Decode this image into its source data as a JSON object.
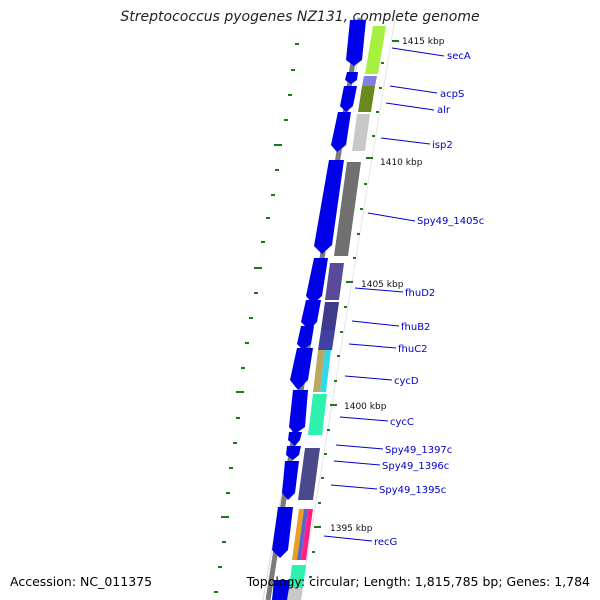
{
  "title": "Streptococcus pyogenes NZ131, complete genome",
  "footer": {
    "accession": "Accession: NC_011375",
    "topology": "Topology: circular; Length: 1,815,785 bp; Genes: 1,784"
  },
  "colors": {
    "cds_forward": "#0000e8",
    "backbone": "#7a7a7a",
    "label_blue": "#0000cc",
    "tick_green": "#1a7a1a"
  },
  "ticks": [
    {
      "label": "1415 kbp"
    },
    {
      "label": "1410 kbp"
    },
    {
      "label": "1405 kbp"
    },
    {
      "label": "1400 kbp"
    },
    {
      "label": "1395 kbp"
    }
  ],
  "genes": [
    {
      "name": "secA",
      "color": "#a8f040"
    },
    {
      "name": "acpS",
      "color": "#8080e0"
    },
    {
      "name": "alr",
      "color": "#6a8a20"
    },
    {
      "name": "isp2",
      "color": "#c8c8c8"
    },
    {
      "name": "Spy49_1405c",
      "color": "#707070"
    },
    {
      "name": "fhuD2",
      "color": "#5a4a9a"
    },
    {
      "name": "fhuB2",
      "color": "#403a8a"
    },
    {
      "name": "fhuC2",
      "color": "#4040a0"
    },
    {
      "name": "cycD",
      "color": "#30d8e8"
    },
    {
      "name": "cycC",
      "color": "#30f0b0"
    },
    {
      "name": "Spy49_1397c",
      "color": "#ffffff"
    },
    {
      "name": "Spy49_1396c",
      "color": "#4a4a8a"
    },
    {
      "name": "Spy49_1395c",
      "color": "#4a4a8a"
    },
    {
      "name": "recG",
      "color": "#ff2080"
    }
  ]
}
